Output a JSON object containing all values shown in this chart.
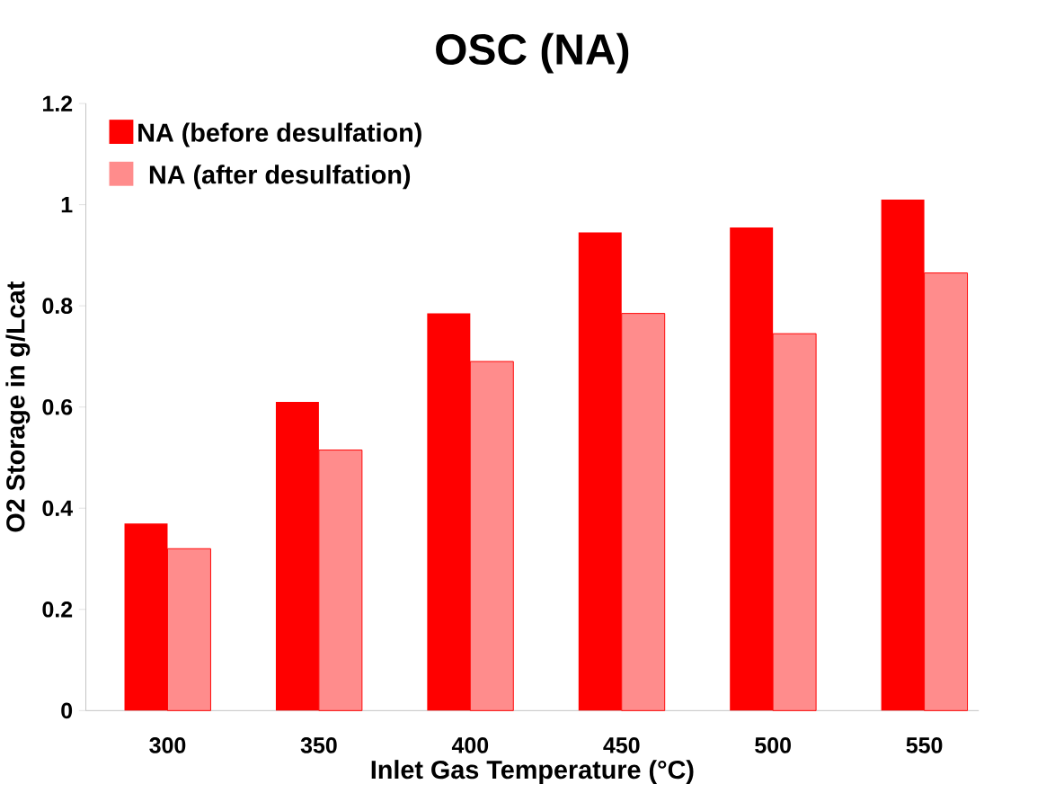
{
  "chart_data": {
    "type": "bar",
    "title": "OSC (NA)",
    "xlabel": "Inlet Gas Temperature (°C)",
    "ylabel": "O2 Storage in g/Lcat",
    "categories": [
      "300",
      "350",
      "400",
      "450",
      "500",
      "550"
    ],
    "series": [
      {
        "name": "NA (before desulfation)",
        "color": "#ff0000",
        "values": [
          0.37,
          0.61,
          0.785,
          0.945,
          0.955,
          1.01
        ]
      },
      {
        "name": "NA (after desulfation)",
        "color": "#ff0000",
        "values": [
          0.32,
          0.515,
          0.69,
          0.785,
          0.745,
          0.865
        ]
      }
    ],
    "ylim": [
      0,
      1.2
    ],
    "yticks": [
      0,
      0.2,
      0.4,
      0.6,
      0.8,
      1,
      1.2
    ],
    "grid": false,
    "legend": "top left"
  }
}
